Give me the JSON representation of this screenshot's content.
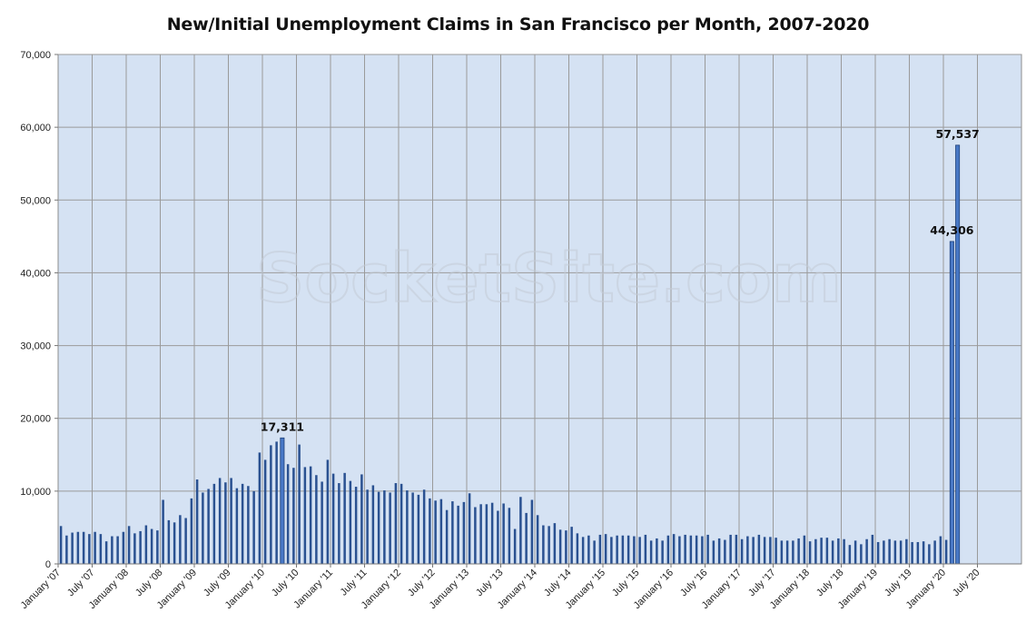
{
  "watermark": "SocketSite.com",
  "chart_data": {
    "type": "bar",
    "title": "New/Initial Unemployment Claims in San Francisco per Month, 2007-2020",
    "xlabel": "",
    "ylabel": "",
    "ylim": [
      0,
      70000
    ],
    "y_ticks": [
      "0",
      "10,000",
      "20,000",
      "30,000",
      "40,000",
      "50,000",
      "60,000",
      "70,000"
    ],
    "x_tick_labels": [
      "January '07",
      "July '07",
      "January '08",
      "July '08",
      "January '09",
      "July '09",
      "January '10",
      "July '10",
      "January '11",
      "July '11",
      "January '12",
      "July '12",
      "January '13",
      "July '13",
      "January '14",
      "July '14",
      "January '15",
      "July '15",
      "January '16",
      "July '16",
      "January '17",
      "July '17",
      "January '18",
      "July '18",
      "January '19",
      "July '19",
      "January '20",
      "July '20"
    ],
    "grid": true,
    "background_color": "#d5e2f3",
    "bar_color": "#2a5191",
    "highlight_color": "#4878c6",
    "start_month": "January 2007",
    "values": [
      5200,
      3900,
      4300,
      4400,
      4400,
      4100,
      4400,
      4100,
      3100,
      3800,
      3800,
      4400,
      5200,
      4200,
      4500,
      5300,
      4800,
      4600,
      8800,
      6000,
      5700,
      6700,
      6300,
      9000,
      11600,
      9800,
      10300,
      11000,
      11800,
      11200,
      11800,
      10400,
      11000,
      10700,
      10000,
      15300,
      14300,
      16300,
      16800,
      17311,
      13700,
      13200,
      16400,
      13300,
      13400,
      12200,
      11300,
      14300,
      12400,
      11100,
      12500,
      11400,
      10600,
      12300,
      10200,
      10800,
      9900,
      10100,
      9800,
      11100,
      11000,
      10100,
      9800,
      9500,
      10200,
      9000,
      8700,
      8900,
      7400,
      8600,
      8000,
      8500,
      9700,
      7800,
      8200,
      8200,
      8400,
      7300,
      8300,
      7700,
      4800,
      9200,
      7000,
      8800,
      6700,
      5300,
      5200,
      5600,
      4700,
      4600,
      5100,
      4200,
      3700,
      3900,
      3200,
      4000,
      4100,
      3700,
      3900,
      3900,
      3900,
      3800,
      3700,
      4000,
      3200,
      3500,
      3200,
      3900,
      4100,
      3800,
      4000,
      3900,
      3900,
      3800,
      4000,
      3200,
      3500,
      3300,
      4000,
      4000,
      3400,
      3800,
      3700,
      4000,
      3700,
      3700,
      3600,
      3200,
      3200,
      3200,
      3500,
      3900,
      3100,
      3400,
      3600,
      3600,
      3200,
      3500,
      3400,
      2600,
      3200,
      2700,
      3400,
      4000,
      3000,
      3200,
      3400,
      3200,
      3200,
      3400,
      3000,
      3000,
      3100,
      2700,
      3200,
      3800,
      3300,
      44306,
      57537
    ],
    "highlights": [
      {
        "index": 39,
        "label": "17,311"
      },
      {
        "index": 157,
        "label": "44,306"
      },
      {
        "index": 158,
        "label": "57,537"
      }
    ]
  }
}
